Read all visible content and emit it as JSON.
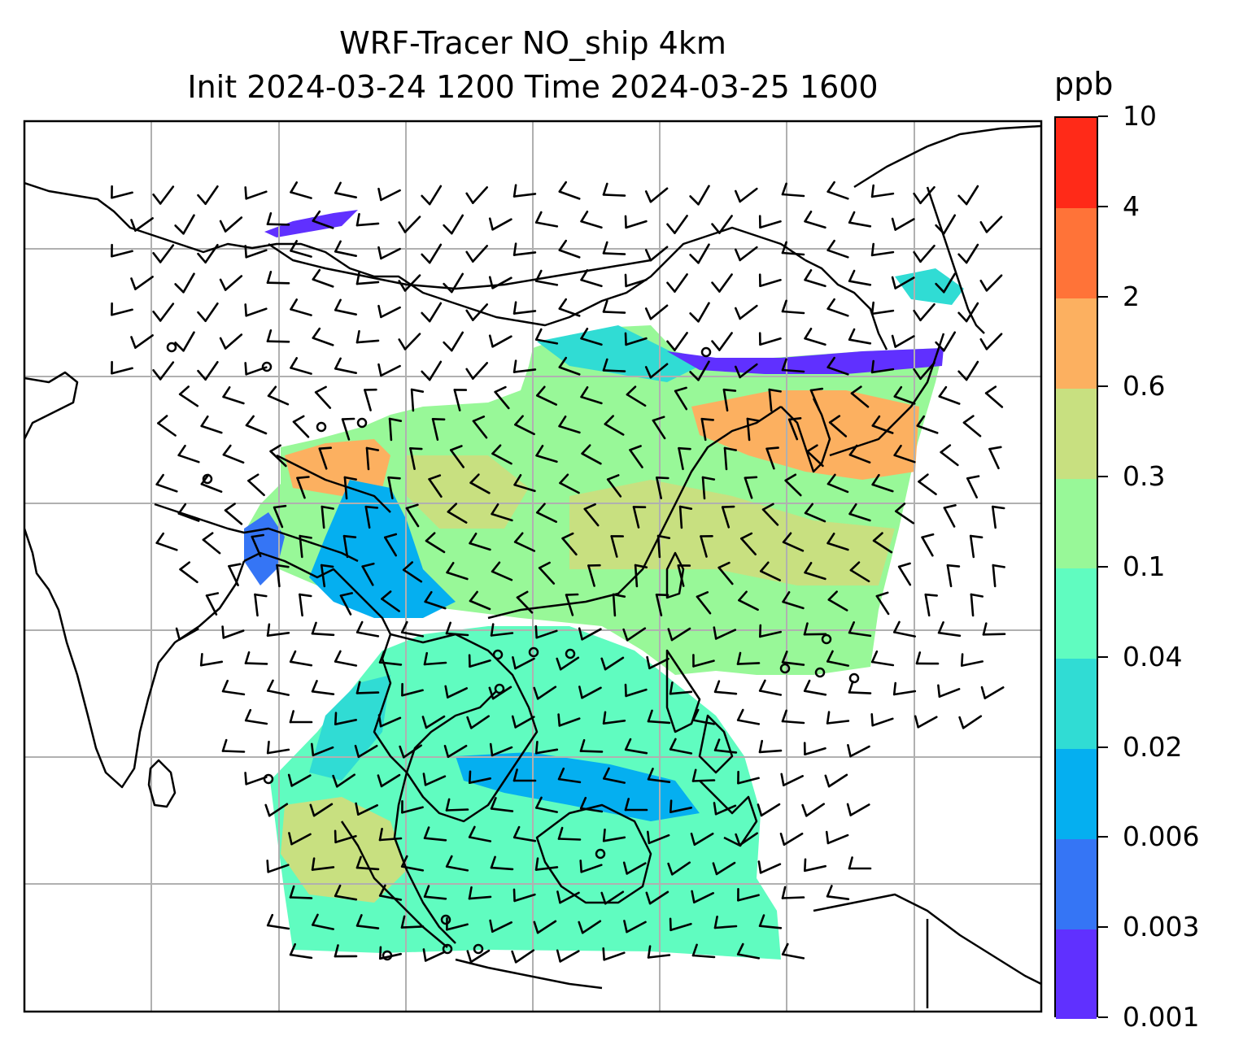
{
  "title": {
    "line1": "WRF-Tracer NO_ship 4km",
    "line2": "Init 2024-03-24 1200 Time 2024-03-25 1600"
  },
  "colorbar": {
    "unit": "ppb",
    "ticks": [
      "0.001",
      "0.003",
      "0.006",
      "0.02",
      "0.04",
      "0.1",
      "0.3",
      "0.6",
      "2",
      "4",
      "10"
    ],
    "colors": [
      "#6030ff",
      "#3575f5",
      "#05aff0",
      "#30dcd4",
      "#60fcc0",
      "#98f898",
      "#c8e080",
      "#fcb060",
      "#ff7338",
      "#ff2a18"
    ]
  },
  "map": {
    "projection_grid": "graticule",
    "field_colors": {
      "0.001": "#6030ff",
      "0.003": "#3575f5",
      "0.006": "#05aff0",
      "0.02": "#30dcd4",
      "0.04": "#60fcc0",
      "0.1": "#98f898",
      "0.3": "#c8e080",
      "0.6": "#fcb060",
      "2": "#ff7338",
      "4": "#ff2a18"
    },
    "overlay": "wind-barbs",
    "coastline_color": "#000000",
    "grid_color": "#b0b0b0"
  }
}
